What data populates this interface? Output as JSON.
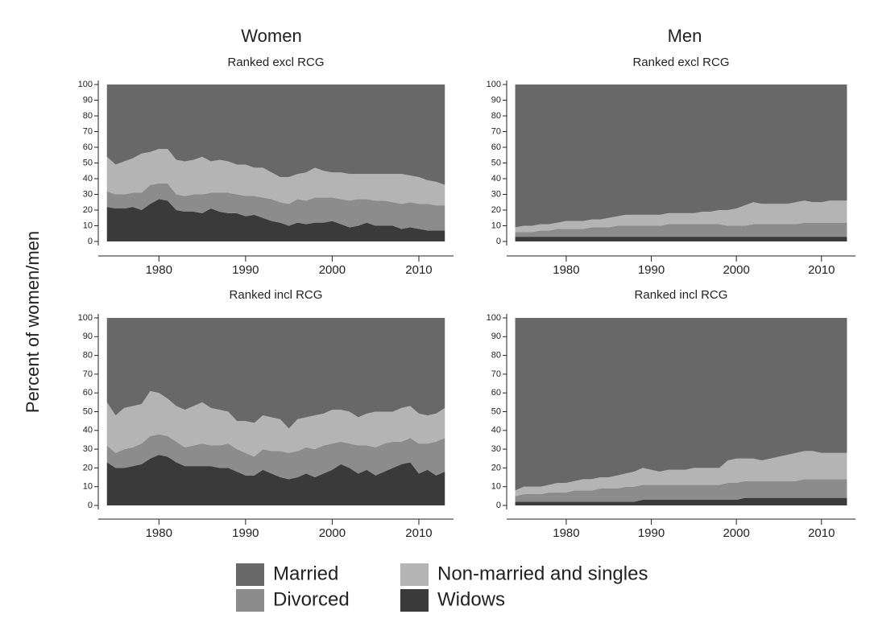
{
  "chart_data": [
    {
      "type": "area",
      "stacked": true,
      "title": "Women",
      "subtitle": "Ranked excl RCG",
      "ylabel": "Percent of women/men",
      "x": [
        1974,
        1975,
        1976,
        1977,
        1978,
        1979,
        1980,
        1981,
        1982,
        1983,
        1984,
        1985,
        1986,
        1987,
        1988,
        1989,
        1990,
        1991,
        1992,
        1993,
        1994,
        1995,
        1996,
        1997,
        1998,
        1999,
        2000,
        2001,
        2002,
        2003,
        2004,
        2005,
        2006,
        2007,
        2008,
        2009,
        2010,
        2011,
        2012,
        2013
      ],
      "xlim": [
        1973,
        2014
      ],
      "xticks": [
        1980,
        1990,
        2000,
        2010
      ],
      "ylim": [
        0,
        100
      ],
      "yticks": [
        0,
        10,
        20,
        30,
        40,
        50,
        60,
        70,
        80,
        90,
        100
      ],
      "series": [
        {
          "name": "Widows",
          "color": "#3a3a3a",
          "values": [
            22,
            21,
            21,
            22,
            20,
            24,
            27,
            26,
            20,
            19,
            19,
            18,
            21,
            19,
            18,
            18,
            16,
            17,
            15,
            13,
            12,
            10,
            12,
            11,
            12,
            12,
            13,
            11,
            9,
            10,
            12,
            10,
            10,
            10,
            8,
            9,
            8,
            7,
            7,
            7
          ]
        },
        {
          "name": "Divorced",
          "color": "#8c8c8c",
          "values": [
            10,
            9,
            9,
            9,
            11,
            12,
            10,
            11,
            10,
            10,
            11,
            12,
            10,
            12,
            13,
            12,
            13,
            12,
            13,
            14,
            13,
            14,
            15,
            15,
            16,
            16,
            15,
            16,
            17,
            17,
            15,
            16,
            16,
            15,
            16,
            16,
            16,
            17,
            16,
            16
          ]
        },
        {
          "name": "Non-married and singles",
          "color": "#b4b4b4",
          "values": [
            22,
            19,
            21,
            22,
            25,
            21,
            22,
            22,
            22,
            22,
            22,
            24,
            20,
            21,
            20,
            19,
            20,
            18,
            19,
            17,
            16,
            17,
            16,
            18,
            19,
            17,
            16,
            17,
            17,
            16,
            16,
            17,
            17,
            18,
            19,
            17,
            17,
            15,
            15,
            13
          ]
        },
        {
          "name": "Married",
          "color": "#686868",
          "values": [
            46,
            51,
            49,
            47,
            44,
            43,
            41,
            41,
            48,
            49,
            48,
            46,
            49,
            48,
            49,
            51,
            51,
            53,
            53,
            56,
            59,
            59,
            57,
            56,
            53,
            55,
            56,
            56,
            57,
            57,
            57,
            57,
            57,
            57,
            57,
            58,
            59,
            61,
            62,
            64
          ]
        }
      ]
    },
    {
      "type": "area",
      "stacked": true,
      "title": "Men",
      "subtitle": "Ranked excl RCG",
      "x": [
        1974,
        1975,
        1976,
        1977,
        1978,
        1979,
        1980,
        1981,
        1982,
        1983,
        1984,
        1985,
        1986,
        1987,
        1988,
        1989,
        1990,
        1991,
        1992,
        1993,
        1994,
        1995,
        1996,
        1997,
        1998,
        1999,
        2000,
        2001,
        2002,
        2003,
        2004,
        2005,
        2006,
        2007,
        2008,
        2009,
        2010,
        2011,
        2012,
        2013
      ],
      "xlim": [
        1973,
        2014
      ],
      "xticks": [
        1980,
        1990,
        2000,
        2010
      ],
      "ylim": [
        0,
        100
      ],
      "yticks": [
        0,
        10,
        20,
        30,
        40,
        50,
        60,
        70,
        80,
        90,
        100
      ],
      "series": [
        {
          "name": "Widows",
          "color": "#3a3a3a",
          "values": [
            3,
            3,
            3,
            3,
            3,
            3,
            3,
            3,
            3,
            3,
            3,
            3,
            3,
            3,
            3,
            3,
            3,
            3,
            3,
            3,
            3,
            3,
            3,
            3,
            3,
            3,
            3,
            3,
            3,
            3,
            3,
            3,
            3,
            3,
            3,
            3,
            3,
            3,
            3,
            3
          ]
        },
        {
          "name": "Divorced",
          "color": "#8c8c8c",
          "values": [
            3,
            3,
            3,
            4,
            4,
            5,
            5,
            5,
            5,
            6,
            6,
            6,
            7,
            7,
            7,
            7,
            7,
            7,
            8,
            8,
            8,
            8,
            8,
            8,
            8,
            7,
            7,
            7,
            8,
            8,
            8,
            8,
            8,
            8,
            9,
            9,
            9,
            9,
            9,
            9
          ]
        },
        {
          "name": "Non-married and singles",
          "color": "#b4b4b4",
          "values": [
            3,
            4,
            4,
            4,
            4,
            4,
            5,
            5,
            5,
            5,
            5,
            6,
            6,
            7,
            7,
            7,
            7,
            7,
            7,
            7,
            7,
            7,
            8,
            8,
            9,
            10,
            11,
            13,
            14,
            13,
            13,
            13,
            13,
            14,
            14,
            13,
            13,
            14,
            14,
            14
          ]
        },
        {
          "name": "Married",
          "color": "#686868",
          "values": [
            91,
            90,
            90,
            89,
            89,
            88,
            87,
            87,
            87,
            86,
            86,
            85,
            84,
            83,
            83,
            83,
            83,
            83,
            82,
            82,
            82,
            82,
            81,
            81,
            80,
            80,
            79,
            77,
            75,
            76,
            76,
            76,
            76,
            75,
            74,
            75,
            75,
            74,
            74,
            74
          ]
        }
      ]
    },
    {
      "type": "area",
      "stacked": true,
      "subtitle": "Ranked incl RCG",
      "x": [
        1974,
        1975,
        1976,
        1977,
        1978,
        1979,
        1980,
        1981,
        1982,
        1983,
        1984,
        1985,
        1986,
        1987,
        1988,
        1989,
        1990,
        1991,
        1992,
        1993,
        1994,
        1995,
        1996,
        1997,
        1998,
        1999,
        2000,
        2001,
        2002,
        2003,
        2004,
        2005,
        2006,
        2007,
        2008,
        2009,
        2010,
        2011,
        2012,
        2013
      ],
      "xlim": [
        1973,
        2014
      ],
      "xticks": [
        1980,
        1990,
        2000,
        2010
      ],
      "ylim": [
        0,
        100
      ],
      "yticks": [
        0,
        10,
        20,
        30,
        40,
        50,
        60,
        70,
        80,
        90,
        100
      ],
      "series": [
        {
          "name": "Widows",
          "color": "#3a3a3a",
          "values": [
            23,
            20,
            20,
            21,
            22,
            25,
            27,
            26,
            23,
            21,
            21,
            21,
            21,
            20,
            20,
            18,
            16,
            16,
            19,
            17,
            15,
            14,
            15,
            17,
            15,
            17,
            19,
            22,
            20,
            17,
            19,
            16,
            18,
            20,
            22,
            23,
            17,
            19,
            16,
            18
          ]
        },
        {
          "name": "Divorced",
          "color": "#8c8c8c",
          "values": [
            9,
            8,
            10,
            10,
            11,
            12,
            11,
            11,
            11,
            10,
            11,
            12,
            11,
            12,
            13,
            12,
            12,
            10,
            11,
            12,
            14,
            14,
            14,
            14,
            15,
            15,
            14,
            12,
            13,
            15,
            13,
            15,
            15,
            14,
            12,
            13,
            16,
            14,
            18,
            18
          ]
        },
        {
          "name": "Non-married and singles",
          "color": "#b4b4b4",
          "values": [
            23,
            20,
            22,
            22,
            21,
            24,
            22,
            20,
            19,
            20,
            21,
            22,
            20,
            19,
            17,
            15,
            17,
            18,
            18,
            18,
            17,
            13,
            17,
            16,
            18,
            17,
            18,
            17,
            17,
            15,
            17,
            19,
            17,
            16,
            18,
            17,
            16,
            15,
            15,
            16
          ]
        },
        {
          "name": "Married",
          "color": "#686868",
          "values": [
            45,
            52,
            48,
            47,
            46,
            39,
            40,
            43,
            47,
            49,
            47,
            45,
            48,
            49,
            50,
            55,
            55,
            56,
            52,
            53,
            54,
            59,
            54,
            53,
            52,
            51,
            49,
            49,
            50,
            53,
            51,
            50,
            50,
            50,
            48,
            47,
            51,
            52,
            51,
            48
          ]
        }
      ]
    },
    {
      "type": "area",
      "stacked": true,
      "subtitle": "Ranked incl RCG",
      "x": [
        1974,
        1975,
        1976,
        1977,
        1978,
        1979,
        1980,
        1981,
        1982,
        1983,
        1984,
        1985,
        1986,
        1987,
        1988,
        1989,
        1990,
        1991,
        1992,
        1993,
        1994,
        1995,
        1996,
        1997,
        1998,
        1999,
        2000,
        2001,
        2002,
        2003,
        2004,
        2005,
        2006,
        2007,
        2008,
        2009,
        2010,
        2011,
        2012,
        2013
      ],
      "xlim": [
        1973,
        2014
      ],
      "xticks": [
        1980,
        1990,
        2000,
        2010
      ],
      "ylim": [
        0,
        100
      ],
      "yticks": [
        0,
        10,
        20,
        30,
        40,
        50,
        60,
        70,
        80,
        90,
        100
      ],
      "series": [
        {
          "name": "Widows",
          "color": "#3a3a3a",
          "values": [
            2,
            2,
            2,
            2,
            2,
            2,
            2,
            2,
            2,
            2,
            2,
            2,
            2,
            2,
            2,
            3,
            3,
            3,
            3,
            3,
            3,
            3,
            3,
            3,
            3,
            3,
            3,
            4,
            4,
            4,
            4,
            4,
            4,
            4,
            4,
            4,
            4,
            4,
            4,
            4
          ]
        },
        {
          "name": "Divorced",
          "color": "#8c8c8c",
          "values": [
            3,
            4,
            4,
            4,
            5,
            5,
            5,
            6,
            6,
            6,
            7,
            7,
            7,
            8,
            8,
            8,
            8,
            8,
            8,
            8,
            8,
            8,
            8,
            8,
            8,
            9,
            9,
            9,
            9,
            9,
            9,
            9,
            9,
            9,
            10,
            10,
            10,
            10,
            10,
            10
          ]
        },
        {
          "name": "Non-married and singles",
          "color": "#b4b4b4",
          "values": [
            3,
            4,
            4,
            4,
            4,
            5,
            5,
            5,
            6,
            6,
            6,
            6,
            7,
            7,
            8,
            9,
            8,
            7,
            8,
            8,
            8,
            9,
            9,
            9,
            9,
            12,
            13,
            12,
            12,
            11,
            12,
            13,
            14,
            15,
            15,
            15,
            14,
            14,
            14,
            14
          ]
        },
        {
          "name": "Married",
          "color": "#686868",
          "values": [
            92,
            90,
            90,
            90,
            89,
            88,
            88,
            87,
            86,
            86,
            85,
            85,
            84,
            83,
            82,
            80,
            81,
            82,
            81,
            81,
            81,
            80,
            80,
            80,
            80,
            76,
            75,
            75,
            75,
            76,
            75,
            74,
            73,
            72,
            71,
            71,
            72,
            72,
            72,
            72
          ]
        }
      ]
    }
  ]
}
